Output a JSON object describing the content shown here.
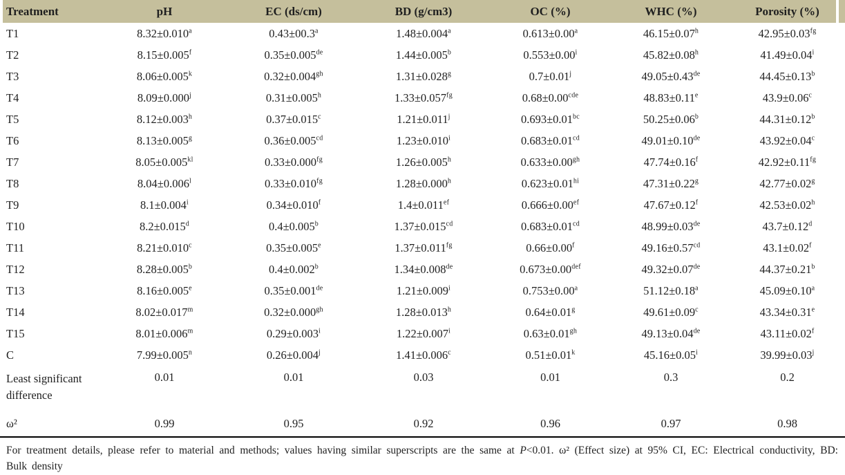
{
  "table": {
    "columns": [
      "Treatment",
      "pH",
      "EC (ds/cm)",
      "BD (g/cm3)",
      "OC (%)",
      "WHC (%)",
      "Porosity (%)"
    ],
    "rows": [
      {
        "label": "T1",
        "cells": [
          {
            "v": "8.32±0.010",
            "s": "a"
          },
          {
            "v": "0.43±00.3",
            "s": "a"
          },
          {
            "v": "1.48±0.004",
            "s": "a"
          },
          {
            "v": "0.613±0.00",
            "s": "a"
          },
          {
            "v": "46.15±0.07",
            "s": "h"
          },
          {
            "v": "42.95±0.03",
            "s": "fg"
          }
        ]
      },
      {
        "label": "T2",
        "cells": [
          {
            "v": "8.15±0.005",
            "s": "f"
          },
          {
            "v": "0.35±0.005",
            "s": "de"
          },
          {
            "v": "1.44±0.005",
            "s": "b"
          },
          {
            "v": "0.553±0.00",
            "s": "i"
          },
          {
            "v": "45.82±0.08",
            "s": "h"
          },
          {
            "v": "41.49±0.04",
            "s": "i"
          }
        ]
      },
      {
        "label": "T3",
        "cells": [
          {
            "v": "8.06±0.005",
            "s": "k"
          },
          {
            "v": "0.32±0.004",
            "s": "gh"
          },
          {
            "v": "1.31±0.028",
            "s": "g"
          },
          {
            "v": "0.7±0.01",
            "s": "j"
          },
          {
            "v": "49.05±0.43",
            "s": "de"
          },
          {
            "v": "44.45±0.13",
            "s": "b"
          }
        ]
      },
      {
        "label": "T4",
        "cells": [
          {
            "v": "8.09±0.000",
            "s": "j"
          },
          {
            "v": "0.31±0.005",
            "s": "h"
          },
          {
            "v": "1.33±0.057",
            "s": "fg"
          },
          {
            "v": "0.68±0.00",
            "s": "cde"
          },
          {
            "v": "48.83±0.11",
            "s": "e"
          },
          {
            "v": "43.9±0.06",
            "s": "c"
          }
        ]
      },
      {
        "label": "T5",
        "cells": [
          {
            "v": "8.12±0.003",
            "s": "h"
          },
          {
            "v": "0.37±0.015",
            "s": "c"
          },
          {
            "v": "1.21±0.011",
            "s": "j"
          },
          {
            "v": "0.693±0.01",
            "s": "bc"
          },
          {
            "v": "50.25±0.06",
            "s": "b"
          },
          {
            "v": "44.31±0.12",
            "s": "b"
          }
        ]
      },
      {
        "label": "T6",
        "cells": [
          {
            "v": "8.13±0.005",
            "s": "g"
          },
          {
            "v": "0.36±0.005",
            "s": "cd"
          },
          {
            "v": "1.23±0.010",
            "s": "i"
          },
          {
            "v": "0.683±0.01",
            "s": "cd"
          },
          {
            "v": "49.01±0.10",
            "s": "de"
          },
          {
            "v": "43.92±0.04",
            "s": "c"
          }
        ]
      },
      {
        "label": "T7",
        "cells": [
          {
            "v": "8.05±0.005",
            "s": "kl"
          },
          {
            "v": "0.33±0.000",
            "s": "fg"
          },
          {
            "v": "1.26±0.005",
            "s": "h"
          },
          {
            "v": "0.633±0.00",
            "s": "gh"
          },
          {
            "v": "47.74±0.16",
            "s": "f"
          },
          {
            "v": "42.92±0.11",
            "s": "fg"
          }
        ]
      },
      {
        "label": "T8",
        "cells": [
          {
            "v": "8.04±0.006",
            "s": "l"
          },
          {
            "v": "0.33±0.010",
            "s": "fg"
          },
          {
            "v": "1.28±0.000",
            "s": "h"
          },
          {
            "v": "0.623±0.01",
            "s": "hi"
          },
          {
            "v": "47.31±0.22",
            "s": "g"
          },
          {
            "v": "42.77±0.02",
            "s": "g"
          }
        ]
      },
      {
        "label": "T9",
        "cells": [
          {
            "v": "8.1±0.004",
            "s": "i"
          },
          {
            "v": "0.34±0.010",
            "s": "f"
          },
          {
            "v": "1.4±0.011",
            "s": "ef"
          },
          {
            "v": "0.666±0.00",
            "s": "ef"
          },
          {
            "v": "47.67±0.12",
            "s": "f"
          },
          {
            "v": "42.53±0.02",
            "s": "h"
          }
        ]
      },
      {
        "label": "T10",
        "cells": [
          {
            "v": "8.2±0.015",
            "s": "d"
          },
          {
            "v": "0.4±0.005",
            "s": "b"
          },
          {
            "v": "1.37±0.015",
            "s": "cd"
          },
          {
            "v": "0.683±0.01",
            "s": "cd"
          },
          {
            "v": "48.99±0.03",
            "s": "de"
          },
          {
            "v": "43.7±0.12",
            "s": "d"
          }
        ]
      },
      {
        "label": "T11",
        "cells": [
          {
            "v": "8.21±0.010",
            "s": "c"
          },
          {
            "v": "0.35±0.005",
            "s": "e"
          },
          {
            "v": "1.37±0.011",
            "s": "fg"
          },
          {
            "v": "0.66±0.00",
            "s": "f"
          },
          {
            "v": "49.16±0.57",
            "s": "cd"
          },
          {
            "v": "43.1±0.02",
            "s": "f"
          }
        ]
      },
      {
        "label": "T12",
        "cells": [
          {
            "v": "8.28±0.005",
            "s": "b"
          },
          {
            "v": "0.4±0.002",
            "s": "b"
          },
          {
            "v": "1.34±0.008",
            "s": "de"
          },
          {
            "v": "0.673±0.00",
            "s": "def"
          },
          {
            "v": "49.32±0.07",
            "s": "de"
          },
          {
            "v": "44.37±0.21",
            "s": "b"
          }
        ]
      },
      {
        "label": "T13",
        "cells": [
          {
            "v": "8.16±0.005",
            "s": "e"
          },
          {
            "v": "0.35±0.001",
            "s": "de"
          },
          {
            "v": "1.21±0.009",
            "s": "i"
          },
          {
            "v": "0.753±0.00",
            "s": "a"
          },
          {
            "v": "51.12±0.18",
            "s": "a"
          },
          {
            "v": "45.09±0.10",
            "s": "a"
          }
        ]
      },
      {
        "label": "T14",
        "cells": [
          {
            "v": "8.02±0.017",
            "s": "m"
          },
          {
            "v": "0.32±0.000",
            "s": "gh"
          },
          {
            "v": "1.28±0.013",
            "s": "h"
          },
          {
            "v": "0.64±0.01",
            "s": "g"
          },
          {
            "v": "49.61±0.09",
            "s": "c"
          },
          {
            "v": "43.34±0.31",
            "s": "e"
          }
        ]
      },
      {
        "label": "T15",
        "cells": [
          {
            "v": "8.01±0.006",
            "s": "m"
          },
          {
            "v": "0.29±0.003",
            "s": "i"
          },
          {
            "v": "1.22±0.007",
            "s": "i"
          },
          {
            "v": "0.63±0.01",
            "s": "gh"
          },
          {
            "v": "49.13±0.04",
            "s": "de"
          },
          {
            "v": "43.11±0.02",
            "s": "f"
          }
        ]
      },
      {
        "label": "C",
        "cells": [
          {
            "v": "7.99±0.005",
            "s": "n"
          },
          {
            "v": "0.26±0.004",
            "s": "j"
          },
          {
            "v": "1.41±0.006",
            "s": "c"
          },
          {
            "v": "0.51±0.01",
            "s": "k"
          },
          {
            "v": "45.16±0.05",
            "s": "i"
          },
          {
            "v": "39.99±0.03",
            "s": "j"
          }
        ]
      }
    ],
    "stat_rows": [
      {
        "key": "lsd",
        "label": "Least significant difference",
        "cells": [
          "0.01",
          "0.01",
          "0.03",
          "0.01",
          "0.3",
          "0.2"
        ]
      },
      {
        "key": "omega",
        "label": "ω²",
        "cells": [
          "0.99",
          "0.95",
          "0.92",
          "0.96",
          "0.97",
          "0.98"
        ]
      }
    ]
  },
  "footnote": {
    "pre": "For treatment details, please refer to material and methods; values having similar superscripts are the same at ",
    "p_italic": "P",
    "post": "<0.01. ω² (Effect size) at 95% CI, EC: Electrical conductivity, BD: Bulk density"
  },
  "colors": {
    "header_bg": "#c5bf9c",
    "text": "#1f1f1f",
    "rule": "#000000"
  }
}
